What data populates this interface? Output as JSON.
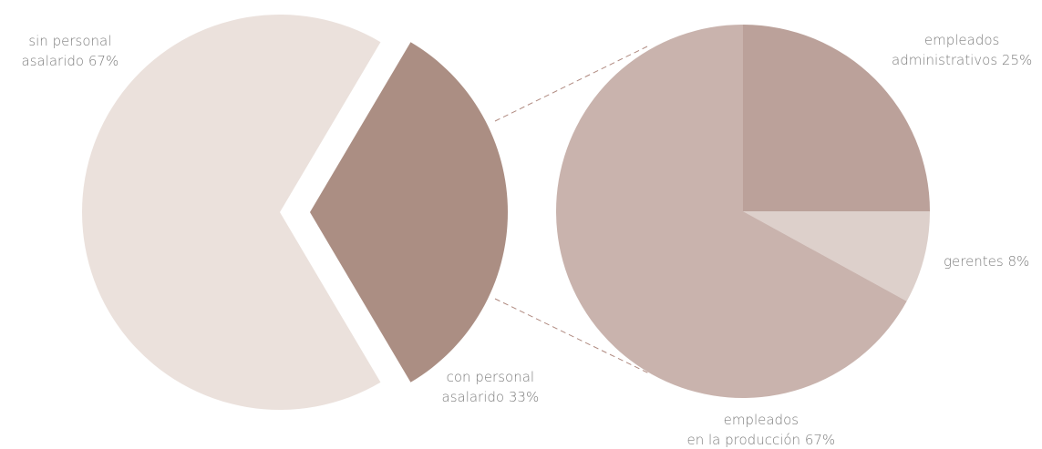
{
  "chart_data": [
    {
      "type": "pie",
      "categories": [
        "sin personal\nasalarido",
        "con personal\nasalarido"
      ],
      "values": [
        67,
        33
      ],
      "value_labels": [
        "67%",
        "33%"
      ],
      "colors": [
        "#ebe1dc",
        "#ab8e83"
      ]
    },
    {
      "type": "pie",
      "categories": [
        "empleados\nadministrativos",
        "gerentes",
        "empleados\nen la producción"
      ],
      "values": [
        25,
        8,
        67
      ],
      "value_labels": [
        "25%",
        "8%",
        "67%"
      ],
      "colors": [
        "#bba19a",
        "#ddd0cb",
        "#c9b3ad"
      ]
    }
  ]
}
